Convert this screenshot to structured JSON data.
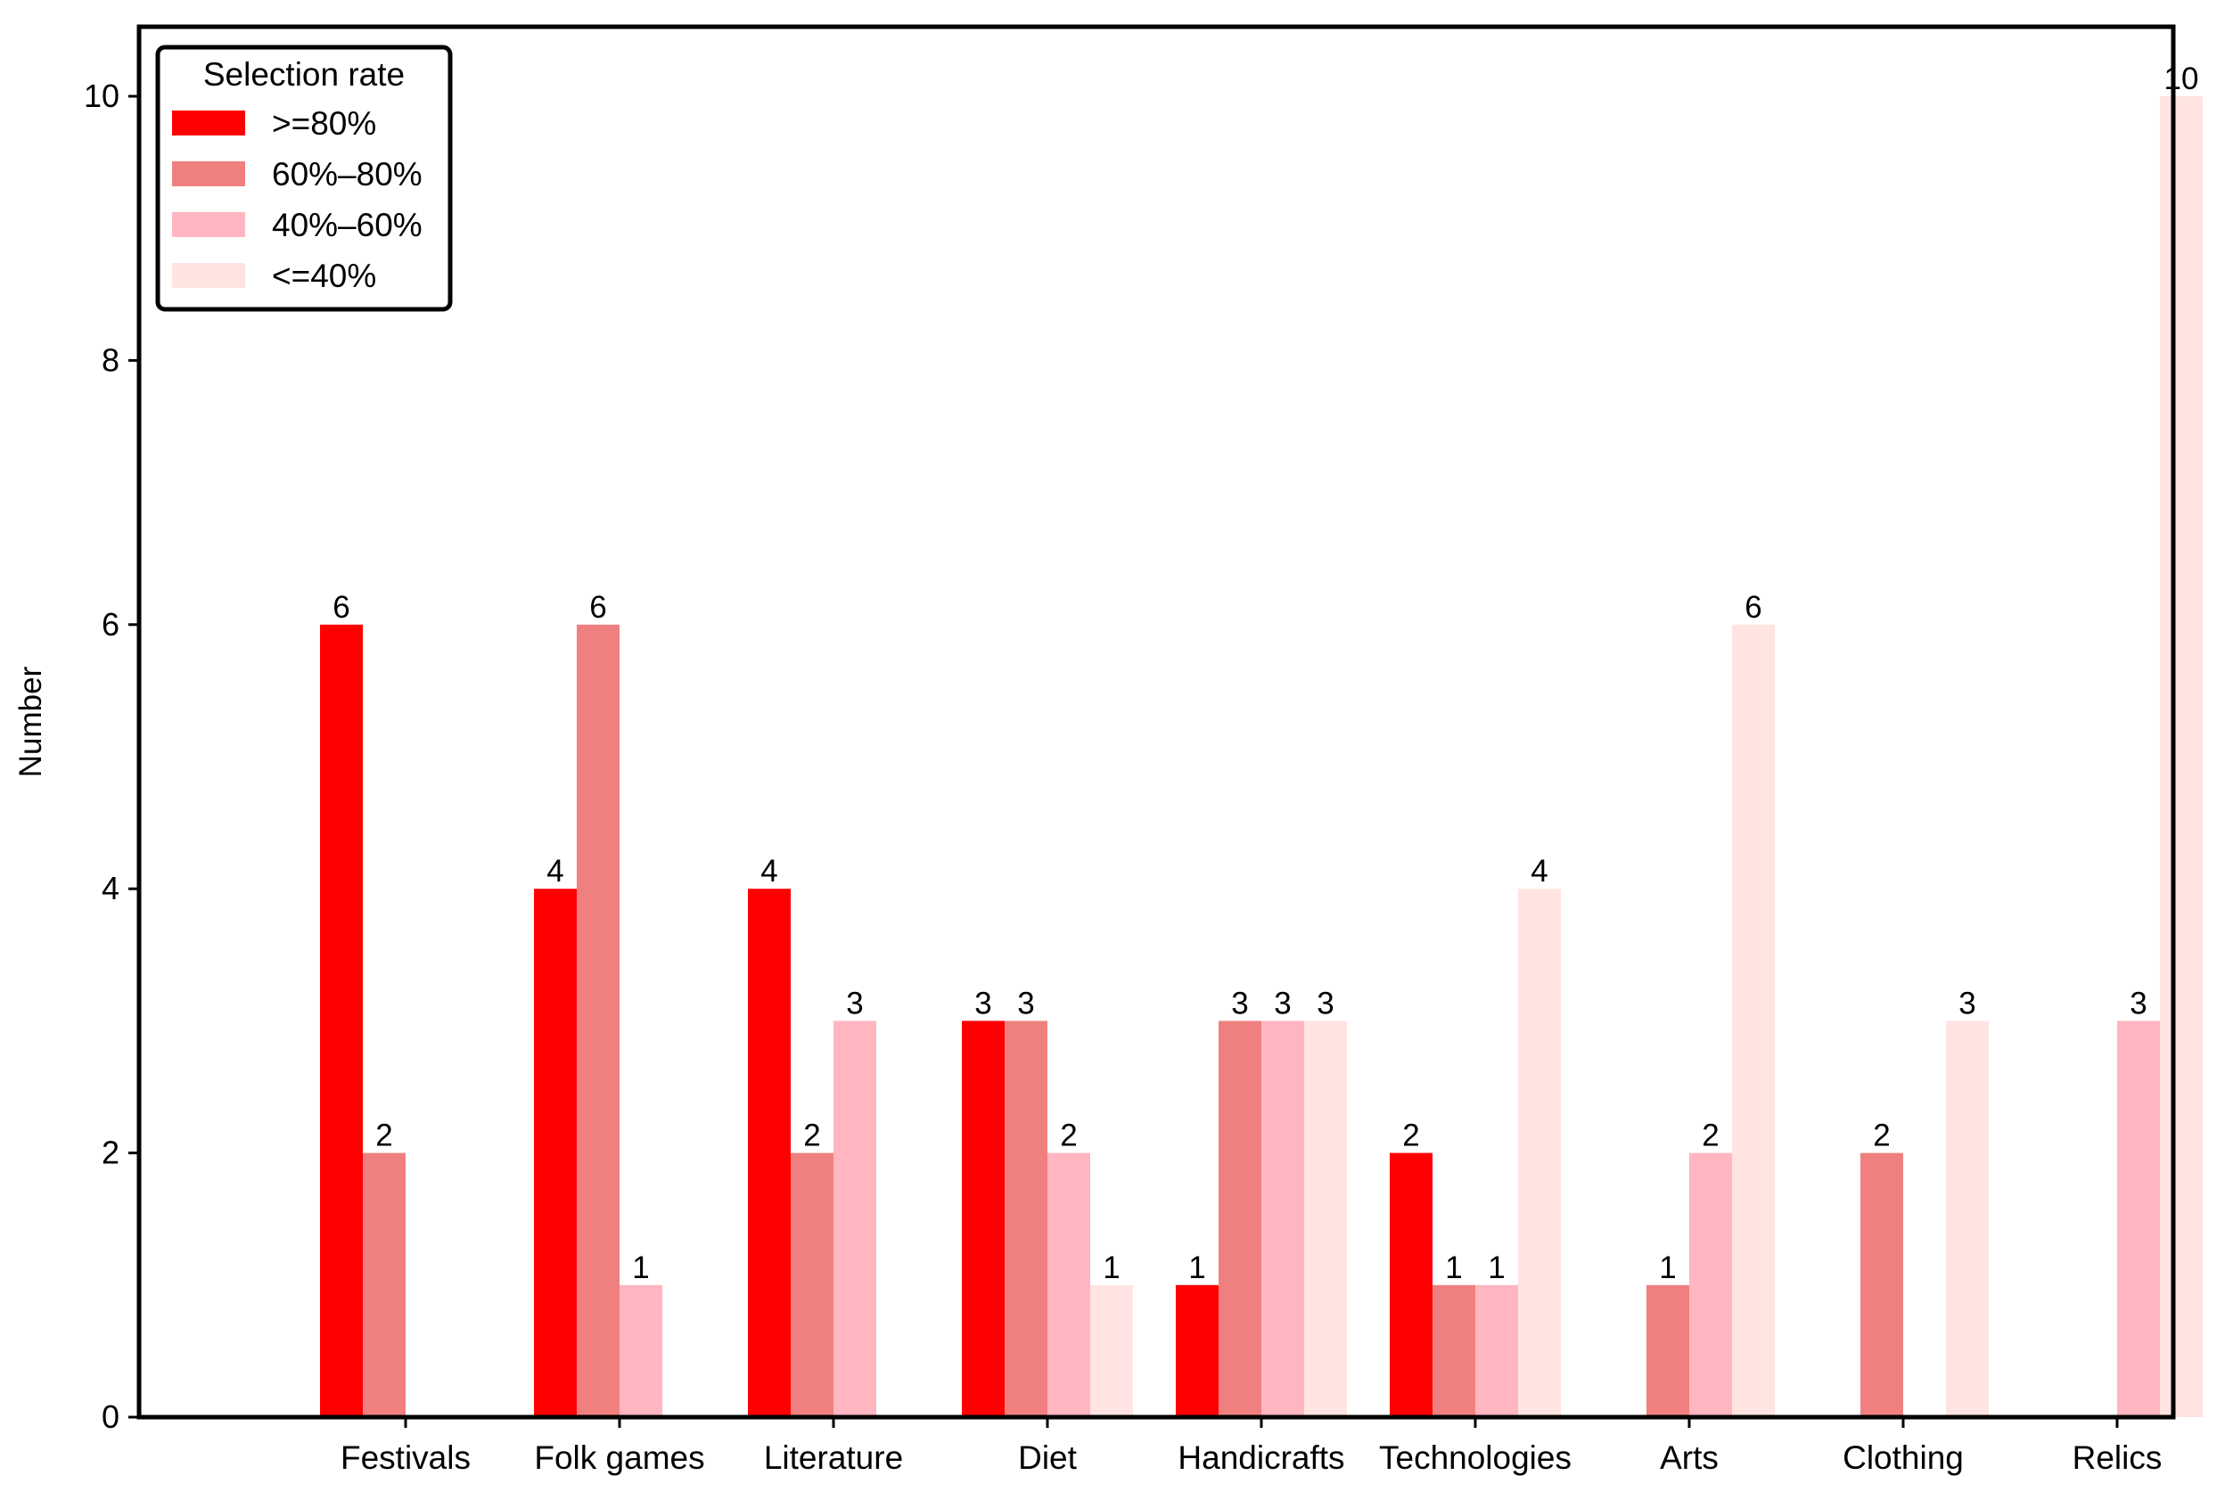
{
  "chart_data": {
    "type": "bar",
    "title": "",
    "xlabel": "",
    "ylabel": "Number",
    "ylim": [
      0,
      10.5
    ],
    "yticks": [
      0,
      2,
      4,
      6,
      8,
      10
    ],
    "grid": false,
    "legend": {
      "title": "Selection rate",
      "placement": "top-left"
    },
    "categories": [
      "Festivals",
      "Folk games",
      "Literature",
      "Diet",
      "Handicrafts",
      "Technologies",
      "Arts",
      "Clothing",
      "Relics"
    ],
    "series": [
      {
        "name": ">=80%",
        "color": "#ff0000",
        "values": [
          6,
          4,
          4,
          3,
          1,
          2,
          0,
          0,
          0
        ]
      },
      {
        "name": "60%–80%",
        "color": "#f08080",
        "values": [
          2,
          6,
          2,
          3,
          3,
          1,
          1,
          2,
          0
        ]
      },
      {
        "name": "40%–60%",
        "color": "#ffb6c1",
        "values": [
          0,
          1,
          3,
          2,
          3,
          1,
          2,
          0,
          3
        ]
      },
      {
        "name": "<=40%",
        "color": "#ffe4e1",
        "values": [
          0,
          0,
          0,
          1,
          3,
          4,
          6,
          3,
          10
        ]
      }
    ]
  }
}
